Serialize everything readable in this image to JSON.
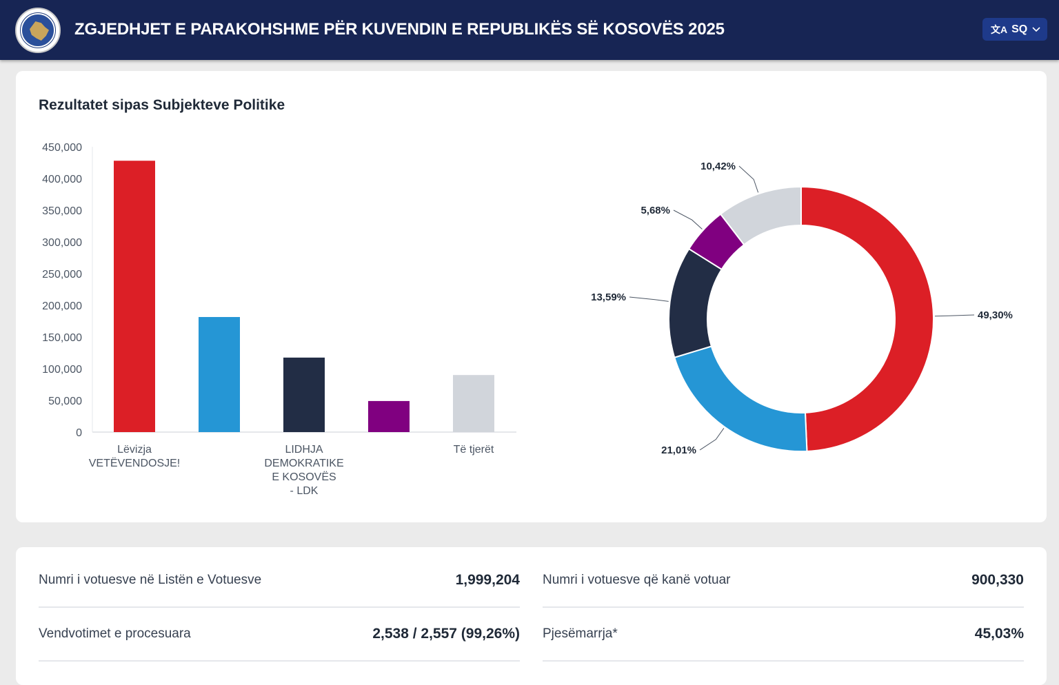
{
  "header": {
    "title": "ZGJEDHJET E PARAKOHSHME PËR KUVENDIN E REPUBLIKËS SË KOSOVËS 2025",
    "language": "SQ",
    "logo_icon": "kosovo-election-commission-seal",
    "translate_icon": "translate-icon",
    "colors": {
      "bg": "#172554",
      "lang_bg": "#1e3a8a"
    }
  },
  "results": {
    "title": "Rezultatet sipas Subjekteve Politike"
  },
  "chart_data": [
    {
      "type": "bar",
      "ylim": [
        0,
        450000
      ],
      "yticks": [
        "0",
        "50,000",
        "100,000",
        "150,000",
        "200,000",
        "250,000",
        "300,000",
        "350,000",
        "400,000",
        "450,000"
      ],
      "categories": [
        [
          "Lëvizja",
          "VETËVENDOSJE!"
        ],
        [],
        [
          "LIDHJA",
          "DEMOKRATIKE",
          "E KOSOVËS",
          "- LDK"
        ],
        [],
        [
          "Të tjerët"
        ]
      ],
      "values": [
        428000,
        181500,
        117500,
        49000,
        90000
      ],
      "colors": [
        "#dc1f26",
        "#2596d5",
        "#222d45",
        "#800080",
        "#d1d5db"
      ],
      "grid": false
    },
    {
      "type": "pie",
      "donut": true,
      "values": [
        49.3,
        21.01,
        13.59,
        5.68,
        10.42
      ],
      "labels": [
        "49,30%",
        "21,01%",
        "13,59%",
        "5,68%",
        "10,42%"
      ],
      "colors": [
        "#dc1f26",
        "#2596d5",
        "#222d45",
        "#800080",
        "#d1d5db"
      ]
    }
  ],
  "stats": [
    {
      "label": "Numri i votuesve në Listën e Votuesve",
      "value": "1,999,204"
    },
    {
      "label": "Numri i votuesve që kanë votuar",
      "value": "900,330"
    },
    {
      "label": "Vendvotimet e procesuara",
      "value": "2,538 / 2,557 (99,26%)"
    },
    {
      "label": "Pjesëmarrja*",
      "value": "45,03%"
    }
  ]
}
